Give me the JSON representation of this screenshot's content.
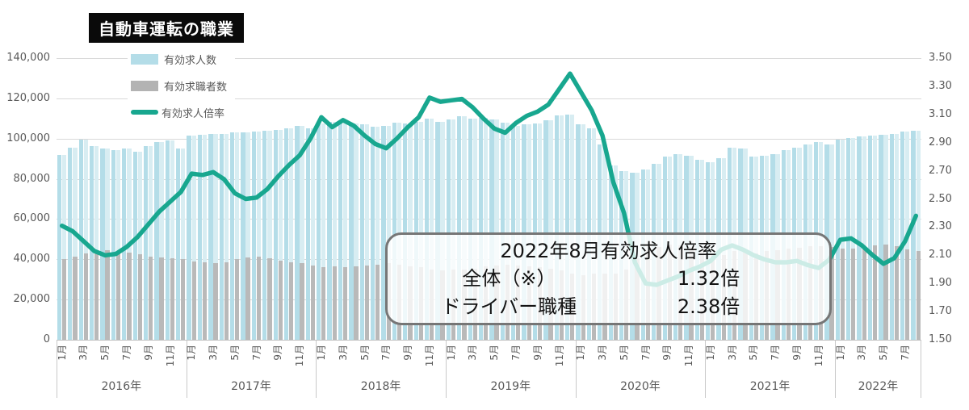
{
  "title": "自動車運転の職業",
  "legend": {
    "items": [
      {
        "label": "有効求人数",
        "type": "bar",
        "color": "#b4dde8"
      },
      {
        "label": "有効求職者数",
        "type": "bar",
        "color": "#b3b3b3"
      },
      {
        "label": "有効求人倍率",
        "type": "line",
        "color": "#18a78f"
      }
    ]
  },
  "annotation": {
    "title": "2022年8月有効求人倍率",
    "rows": [
      {
        "label": "全体（※）",
        "value": "1.32倍"
      },
      {
        "label": "ドライバー職種",
        "value": "2.38倍"
      }
    ]
  },
  "chart_data": {
    "type": "bar+line combo",
    "grid": true,
    "legend_position": "top-left",
    "colors": {
      "openings_bar": "#b4dde8",
      "openings_bar_pale": "#d8edf2",
      "seekers_bar": "#b9b9b9",
      "ratio_line": "#18a78f",
      "gridline": "#d9d9d9"
    },
    "left_axis": {
      "title": "",
      "min": 0,
      "max": 140000,
      "step": 20000,
      "ticks": [
        "140,000",
        "120,000",
        "100,000",
        "80,000",
        "60,000",
        "40,000",
        "20,000",
        "0"
      ]
    },
    "right_axis": {
      "title": "",
      "min": 1.5,
      "max": 3.5,
      "step": 0.2,
      "ticks": [
        "3.50",
        "3.30",
        "3.10",
        "2.90",
        "2.70",
        "2.50",
        "2.30",
        "2.10",
        "1.90",
        "1.70",
        "1.50"
      ]
    },
    "years": [
      {
        "label": "2016年",
        "months": 12
      },
      {
        "label": "2017年",
        "months": 12
      },
      {
        "label": "2018年",
        "months": 12
      },
      {
        "label": "2019年",
        "months": 12
      },
      {
        "label": "2020年",
        "months": 12
      },
      {
        "label": "2021年",
        "months": 12
      },
      {
        "label": "2022年",
        "months": 8
      }
    ],
    "month_tick_format": "odd months labeled: 1月,3月,5月,7月,9月,11月",
    "series": [
      {
        "name": "有効求人数",
        "type": "bar",
        "axis": "left",
        "color": "#b4dde8",
        "values": [
          92000,
          95500,
          99500,
          96200,
          95000,
          94100,
          95000,
          93300,
          96200,
          98200,
          99000,
          95000,
          101500,
          102000,
          102500,
          102500,
          103000,
          103000,
          103500,
          104000,
          104500,
          105000,
          106500,
          105000,
          107500,
          108500,
          108000,
          107500,
          107000,
          106000,
          106500,
          108000,
          107500,
          108500,
          110000,
          108500,
          109500,
          111000,
          110000,
          110500,
          109500,
          108000,
          106500,
          107000,
          107500,
          109000,
          111500,
          112000,
          107000,
          105000,
          97000,
          86800,
          84000,
          83200,
          84800,
          87300,
          90900,
          92100,
          91300,
          89300,
          88100,
          90100,
          95400,
          95000,
          90900,
          91300,
          92100,
          94100,
          95500,
          96900,
          98200,
          96900,
          99500,
          100500,
          101000,
          101500,
          102000,
          102500,
          103500,
          104000
        ]
      },
      {
        "name": "有効求職者数",
        "type": "bar",
        "axis": "left",
        "color": "#b9b9b9",
        "values": [
          40000,
          41500,
          43000,
          44000,
          44500,
          44000,
          43500,
          42500,
          41500,
          41000,
          40500,
          40000,
          39000,
          38500,
          38000,
          38500,
          40000,
          41000,
          41500,
          40500,
          39500,
          38500,
          38000,
          37000,
          36000,
          36500,
          36000,
          36500,
          37000,
          37500,
          38000,
          37500,
          36500,
          36000,
          35000,
          34500,
          35000,
          35000,
          35500,
          36500,
          37000,
          37500,
          37000,
          36500,
          36000,
          35500,
          34500,
          33000,
          32000,
          33000,
          33000,
          33000,
          35000,
          40500,
          44500,
          46000,
          47500,
          47000,
          46000,
          44500,
          43000,
          42000,
          44000,
          44500,
          43000,
          44000,
          44700,
          45200,
          45900,
          46500,
          46500,
          46000,
          45500,
          45500,
          46000,
          47000,
          47500,
          46500,
          45000,
          44000
        ]
      },
      {
        "name": "有効求人倍率",
        "type": "line",
        "axis": "right",
        "color": "#18a78f",
        "values": [
          2.31,
          2.27,
          2.2,
          2.13,
          2.1,
          2.11,
          2.16,
          2.23,
          2.32,
          2.41,
          2.48,
          2.55,
          2.68,
          2.67,
          2.69,
          2.64,
          2.54,
          2.5,
          2.51,
          2.57,
          2.66,
          2.74,
          2.81,
          2.93,
          3.08,
          3.01,
          3.06,
          3.02,
          2.95,
          2.89,
          2.86,
          2.93,
          3.01,
          3.08,
          3.22,
          3.19,
          3.2,
          3.21,
          3.15,
          3.07,
          3.0,
          2.97,
          3.04,
          3.09,
          3.12,
          3.17,
          3.28,
          3.39,
          3.26,
          3.13,
          2.95,
          2.62,
          2.4,
          2.05,
          1.9,
          1.89,
          1.92,
          1.95,
          1.99,
          2.02,
          2.06,
          2.14,
          2.17,
          2.14,
          2.1,
          2.07,
          2.05,
          2.05,
          2.06,
          2.03,
          2.01,
          2.07,
          2.21,
          2.22,
          2.17,
          2.1,
          2.04,
          2.08,
          2.2,
          2.38
        ]
      }
    ]
  }
}
